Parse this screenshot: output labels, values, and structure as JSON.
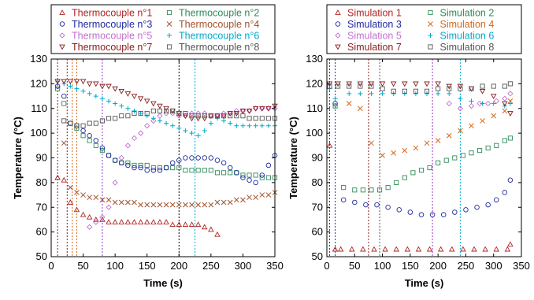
{
  "chart_data": [
    {
      "type": "scatter",
      "title": "",
      "xlabel": "Time (s)",
      "ylabel": "Temperature (°C)",
      "xlim": [
        0,
        350
      ],
      "ylim": [
        50,
        130
      ],
      "x_ticks": [
        "0",
        "50",
        "100",
        "150",
        "200",
        "250",
        "300",
        "350"
      ],
      "y_ticks": [
        "50",
        "60",
        "70",
        "80",
        "90",
        "100",
        "110",
        "120",
        "130"
      ],
      "grid": false,
      "legend": "top, above plot, 2 columns",
      "vlines": [
        {
          "x": 10,
          "color": "#8b1a1a"
        },
        {
          "x": 25,
          "color": "#8b1a1a"
        },
        {
          "x": 33,
          "color": "#d2691e"
        },
        {
          "x": 40,
          "color": "#d2691e"
        },
        {
          "x": 80,
          "color": "#9932cc"
        },
        {
          "x": 200,
          "color": "#000000"
        },
        {
          "x": 225,
          "color": "#00aacc"
        }
      ],
      "series": [
        {
          "name": "Thermocouple n°1",
          "color": "#b22222",
          "marker": "triangle",
          "x": [
            10,
            20,
            30,
            40,
            50,
            60,
            70,
            80,
            90,
            100,
            110,
            120,
            130,
            140,
            150,
            160,
            170,
            180,
            190,
            200,
            210,
            220,
            230,
            240,
            250,
            260
          ],
          "y": [
            82,
            81,
            72,
            69,
            67,
            66,
            65,
            65,
            64,
            64,
            64,
            64,
            64,
            64,
            64,
            64,
            64,
            64,
            63,
            63,
            63,
            63,
            63,
            62,
            61,
            59
          ]
        },
        {
          "name": "Thermocouple n°2",
          "color": "#2e8b57",
          "marker": "square",
          "x": [
            10,
            20,
            30,
            40,
            50,
            60,
            70,
            80,
            90,
            100,
            110,
            120,
            130,
            140,
            150,
            160,
            170,
            180,
            190,
            200,
            210,
            220,
            230,
            240,
            250,
            260,
            270,
            280,
            290,
            300,
            310,
            320,
            330,
            340,
            350
          ],
          "y": [
            118,
            112,
            104,
            102,
            99,
            97,
            95,
            93,
            91,
            89,
            88,
            88,
            87,
            87,
            87,
            86,
            86,
            86,
            86,
            86,
            85,
            85,
            85,
            85,
            85,
            84,
            84,
            84,
            84,
            83,
            83,
            83,
            82,
            82,
            82
          ]
        },
        {
          "name": "Thermocouple n°3",
          "color": "#1e2aa0",
          "marker": "circle",
          "x": [
            10,
            20,
            30,
            40,
            50,
            60,
            70,
            80,
            90,
            100,
            110,
            120,
            130,
            140,
            150,
            160,
            170,
            180,
            190,
            200,
            210,
            220,
            230,
            240,
            250,
            260,
            270,
            280,
            290,
            300,
            310,
            320,
            330,
            340,
            350
          ],
          "y": [
            119,
            115,
            104,
            103,
            101,
            99,
            97,
            94,
            91,
            89,
            88,
            87,
            86,
            86,
            85,
            85,
            85,
            86,
            88,
            89,
            90,
            90,
            90,
            90,
            90,
            89,
            88,
            86,
            84,
            82,
            81,
            80,
            83,
            87,
            91
          ]
        },
        {
          "name": "Thermocouple n°4",
          "color": "#a0522d",
          "marker": "x",
          "x": [
            20,
            30,
            40,
            50,
            60,
            70,
            80,
            90,
            100,
            110,
            120,
            130,
            140,
            150,
            160,
            170,
            180,
            190,
            200,
            210,
            220,
            230,
            240,
            250,
            260,
            270,
            280,
            290,
            300,
            310,
            320,
            330,
            340,
            350
          ],
          "y": [
            96,
            78,
            76,
            75,
            74,
            74,
            73,
            73,
            72,
            72,
            72,
            72,
            71,
            71,
            71,
            71,
            71,
            71,
            71,
            71,
            71,
            71,
            71,
            71,
            72,
            72,
            72,
            73,
            73,
            74,
            74,
            75,
            75,
            76
          ]
        },
        {
          "name": "Thermocouple n°5",
          "color": "#c070d0",
          "marker": "diamond",
          "x": [
            60,
            70,
            80,
            90,
            100,
            110,
            120,
            130,
            140,
            150,
            160,
            170,
            180,
            190,
            200,
            210,
            220,
            230,
            240,
            250,
            260,
            270,
            280,
            290,
            300,
            310,
            320,
            330,
            340,
            350
          ],
          "y": [
            62,
            64,
            66,
            70,
            80,
            90,
            95,
            98,
            100,
            103,
            105,
            107,
            108,
            108,
            107,
            107,
            108,
            108,
            108,
            107,
            107,
            108,
            108,
            109,
            109,
            109,
            110,
            110,
            110,
            110
          ]
        },
        {
          "name": "Thermocouple n°6",
          "color": "#00aacc",
          "marker": "plus",
          "x": [
            10,
            20,
            30,
            40,
            50,
            60,
            70,
            80,
            90,
            100,
            110,
            120,
            130,
            140,
            150,
            160,
            170,
            180,
            190,
            200,
            210,
            220,
            230,
            240,
            250,
            260,
            270,
            280,
            290,
            300,
            310,
            320,
            330,
            340,
            350
          ],
          "y": [
            121,
            120,
            119,
            118,
            117,
            116,
            115,
            114,
            113,
            112,
            111,
            110,
            109,
            108,
            107,
            106,
            105,
            104,
            103,
            102,
            101,
            100,
            99,
            101,
            104,
            106,
            105,
            104,
            103,
            103,
            103,
            103,
            103,
            103,
            103
          ]
        },
        {
          "name": "Thermocouple n°7",
          "color": "#8b1a1a",
          "marker": "triangle-down",
          "x": [
            10,
            20,
            30,
            40,
            50,
            60,
            70,
            80,
            90,
            100,
            110,
            120,
            130,
            140,
            150,
            160,
            170,
            180,
            190,
            200,
            210,
            220,
            230,
            240,
            250,
            260,
            270,
            280,
            290,
            300,
            310,
            320,
            330,
            340,
            350
          ],
          "y": [
            121,
            121,
            121,
            121,
            121,
            120,
            120,
            119,
            119,
            118,
            117,
            116,
            115,
            114,
            113,
            112,
            111,
            110,
            109,
            108,
            107,
            106,
            106,
            106,
            107,
            107,
            107,
            108,
            108,
            109,
            109,
            110,
            110,
            110,
            111
          ]
        },
        {
          "name": "Thermocouple n°8",
          "color": "#555555",
          "marker": "square",
          "x": [
            20,
            30,
            40,
            50,
            60,
            70,
            80,
            90,
            100,
            110,
            120,
            130,
            140,
            150,
            160,
            170,
            180,
            190,
            200,
            210,
            220,
            230,
            240,
            250,
            260,
            270,
            280,
            290,
            300,
            310,
            320,
            330,
            340,
            350
          ],
          "y": [
            105,
            104,
            103,
            103,
            104,
            104,
            105,
            106,
            106,
            107,
            107,
            108,
            108,
            108,
            109,
            109,
            109,
            109,
            108,
            108,
            107,
            107,
            107,
            107,
            107,
            107,
            107,
            107,
            107,
            106,
            106,
            106,
            106,
            106
          ]
        }
      ]
    },
    {
      "type": "scatter",
      "title": "",
      "xlabel": "Time (s)",
      "ylabel": "Temperature (°C)",
      "xlim": [
        0,
        350
      ],
      "ylim": [
        50,
        130
      ],
      "x_ticks": [
        "0",
        "50",
        "100",
        "150",
        "200",
        "250",
        "300",
        "350"
      ],
      "y_ticks": [
        "50",
        "60",
        "70",
        "80",
        "90",
        "100",
        "110",
        "120",
        "130"
      ],
      "grid": false,
      "legend": "top, above plot, 2 columns",
      "vlines": [
        {
          "x": 5,
          "color": "#8b1a1a"
        },
        {
          "x": 15,
          "color": "#1e2aa0"
        },
        {
          "x": 75,
          "color": "#8b1a1a"
        },
        {
          "x": 95,
          "color": "#555555"
        },
        {
          "x": 190,
          "color": "#9932cc"
        },
        {
          "x": 240,
          "color": "#00aacc"
        }
      ],
      "series": [
        {
          "name": "Simulation 1",
          "color": "#b22222",
          "marker": "triangle",
          "x": [
            5,
            15,
            25,
            45,
            65,
            85,
            105,
            125,
            145,
            165,
            185,
            205,
            225,
            245,
            265,
            285,
            305,
            325,
            330
          ],
          "y": [
            95,
            53,
            53,
            53,
            53,
            53,
            53,
            53,
            53,
            53,
            53,
            53,
            53,
            53,
            53,
            53,
            53,
            53,
            55
          ]
        },
        {
          "name": "Simulation 2",
          "color": "#2e8b57",
          "marker": "square",
          "x": [
            15,
            30,
            50,
            65,
            80,
            95,
            110,
            125,
            140,
            155,
            170,
            185,
            200,
            215,
            230,
            245,
            260,
            275,
            290,
            305,
            320,
            330
          ],
          "y": [
            111,
            78,
            77,
            77,
            77,
            77,
            78,
            80,
            82,
            84,
            85,
            86,
            88,
            89,
            90,
            91,
            92,
            93,
            94,
            95,
            97,
            98
          ]
        },
        {
          "name": "Simulation 3",
          "color": "#1e2aa0",
          "marker": "circle",
          "x": [
            15,
            30,
            50,
            70,
            90,
            110,
            130,
            150,
            170,
            190,
            210,
            230,
            250,
            270,
            290,
            305,
            320,
            330
          ],
          "y": [
            112,
            73,
            72,
            71,
            71,
            70,
            69,
            68,
            67,
            67,
            67,
            68,
            69,
            70,
            71,
            73,
            76,
            81
          ]
        },
        {
          "name": "Simulation 4",
          "color": "#d2691e",
          "marker": "x",
          "x": [
            40,
            60,
            80,
            100,
            120,
            140,
            160,
            180,
            200,
            220,
            240,
            260,
            280,
            300,
            320,
            330
          ],
          "y": [
            112,
            110,
            96,
            91,
            92,
            93,
            94,
            96,
            97,
            99,
            101,
            103,
            105,
            107,
            109,
            113
          ]
        },
        {
          "name": "Simulation 5",
          "color": "#c070d0",
          "marker": "diamond",
          "x": [
            220,
            240,
            260,
            275,
            290,
            305,
            320,
            330
          ],
          "y": [
            112,
            110,
            111,
            112,
            112,
            113,
            114,
            116
          ]
        },
        {
          "name": "Simulation 6",
          "color": "#00aacc",
          "marker": "plus",
          "x": [
            5,
            15,
            40,
            60,
            80,
            100,
            120,
            140,
            160,
            180,
            200,
            220,
            240,
            260,
            280,
            300,
            320,
            330
          ],
          "y": [
            118,
            114,
            116,
            116,
            116,
            116,
            116,
            116,
            116,
            116,
            116,
            116,
            114,
            113,
            112,
            112,
            111,
            112
          ]
        },
        {
          "name": "Simulation 7",
          "color": "#8b1a1a",
          "marker": "triangle-down",
          "x": [
            5,
            20,
            40,
            60,
            80,
            100,
            120,
            140,
            160,
            180,
            200,
            220,
            240,
            260,
            280,
            300,
            320,
            330
          ],
          "y": [
            120,
            120,
            120,
            120,
            120,
            120,
            120,
            120,
            120,
            120,
            120,
            119,
            119,
            118,
            117,
            115,
            112,
            108
          ]
        },
        {
          "name": "Simulation 8",
          "color": "#555555",
          "marker": "square",
          "x": [
            5,
            20,
            40,
            60,
            80,
            100,
            120,
            140,
            160,
            180,
            200,
            220,
            240,
            260,
            280,
            300,
            320,
            330
          ],
          "y": [
            119,
            119,
            119,
            119,
            119,
            118,
            117,
            117,
            117,
            117,
            118,
            118,
            118,
            118,
            119,
            119,
            119,
            120
          ]
        }
      ]
    }
  ]
}
